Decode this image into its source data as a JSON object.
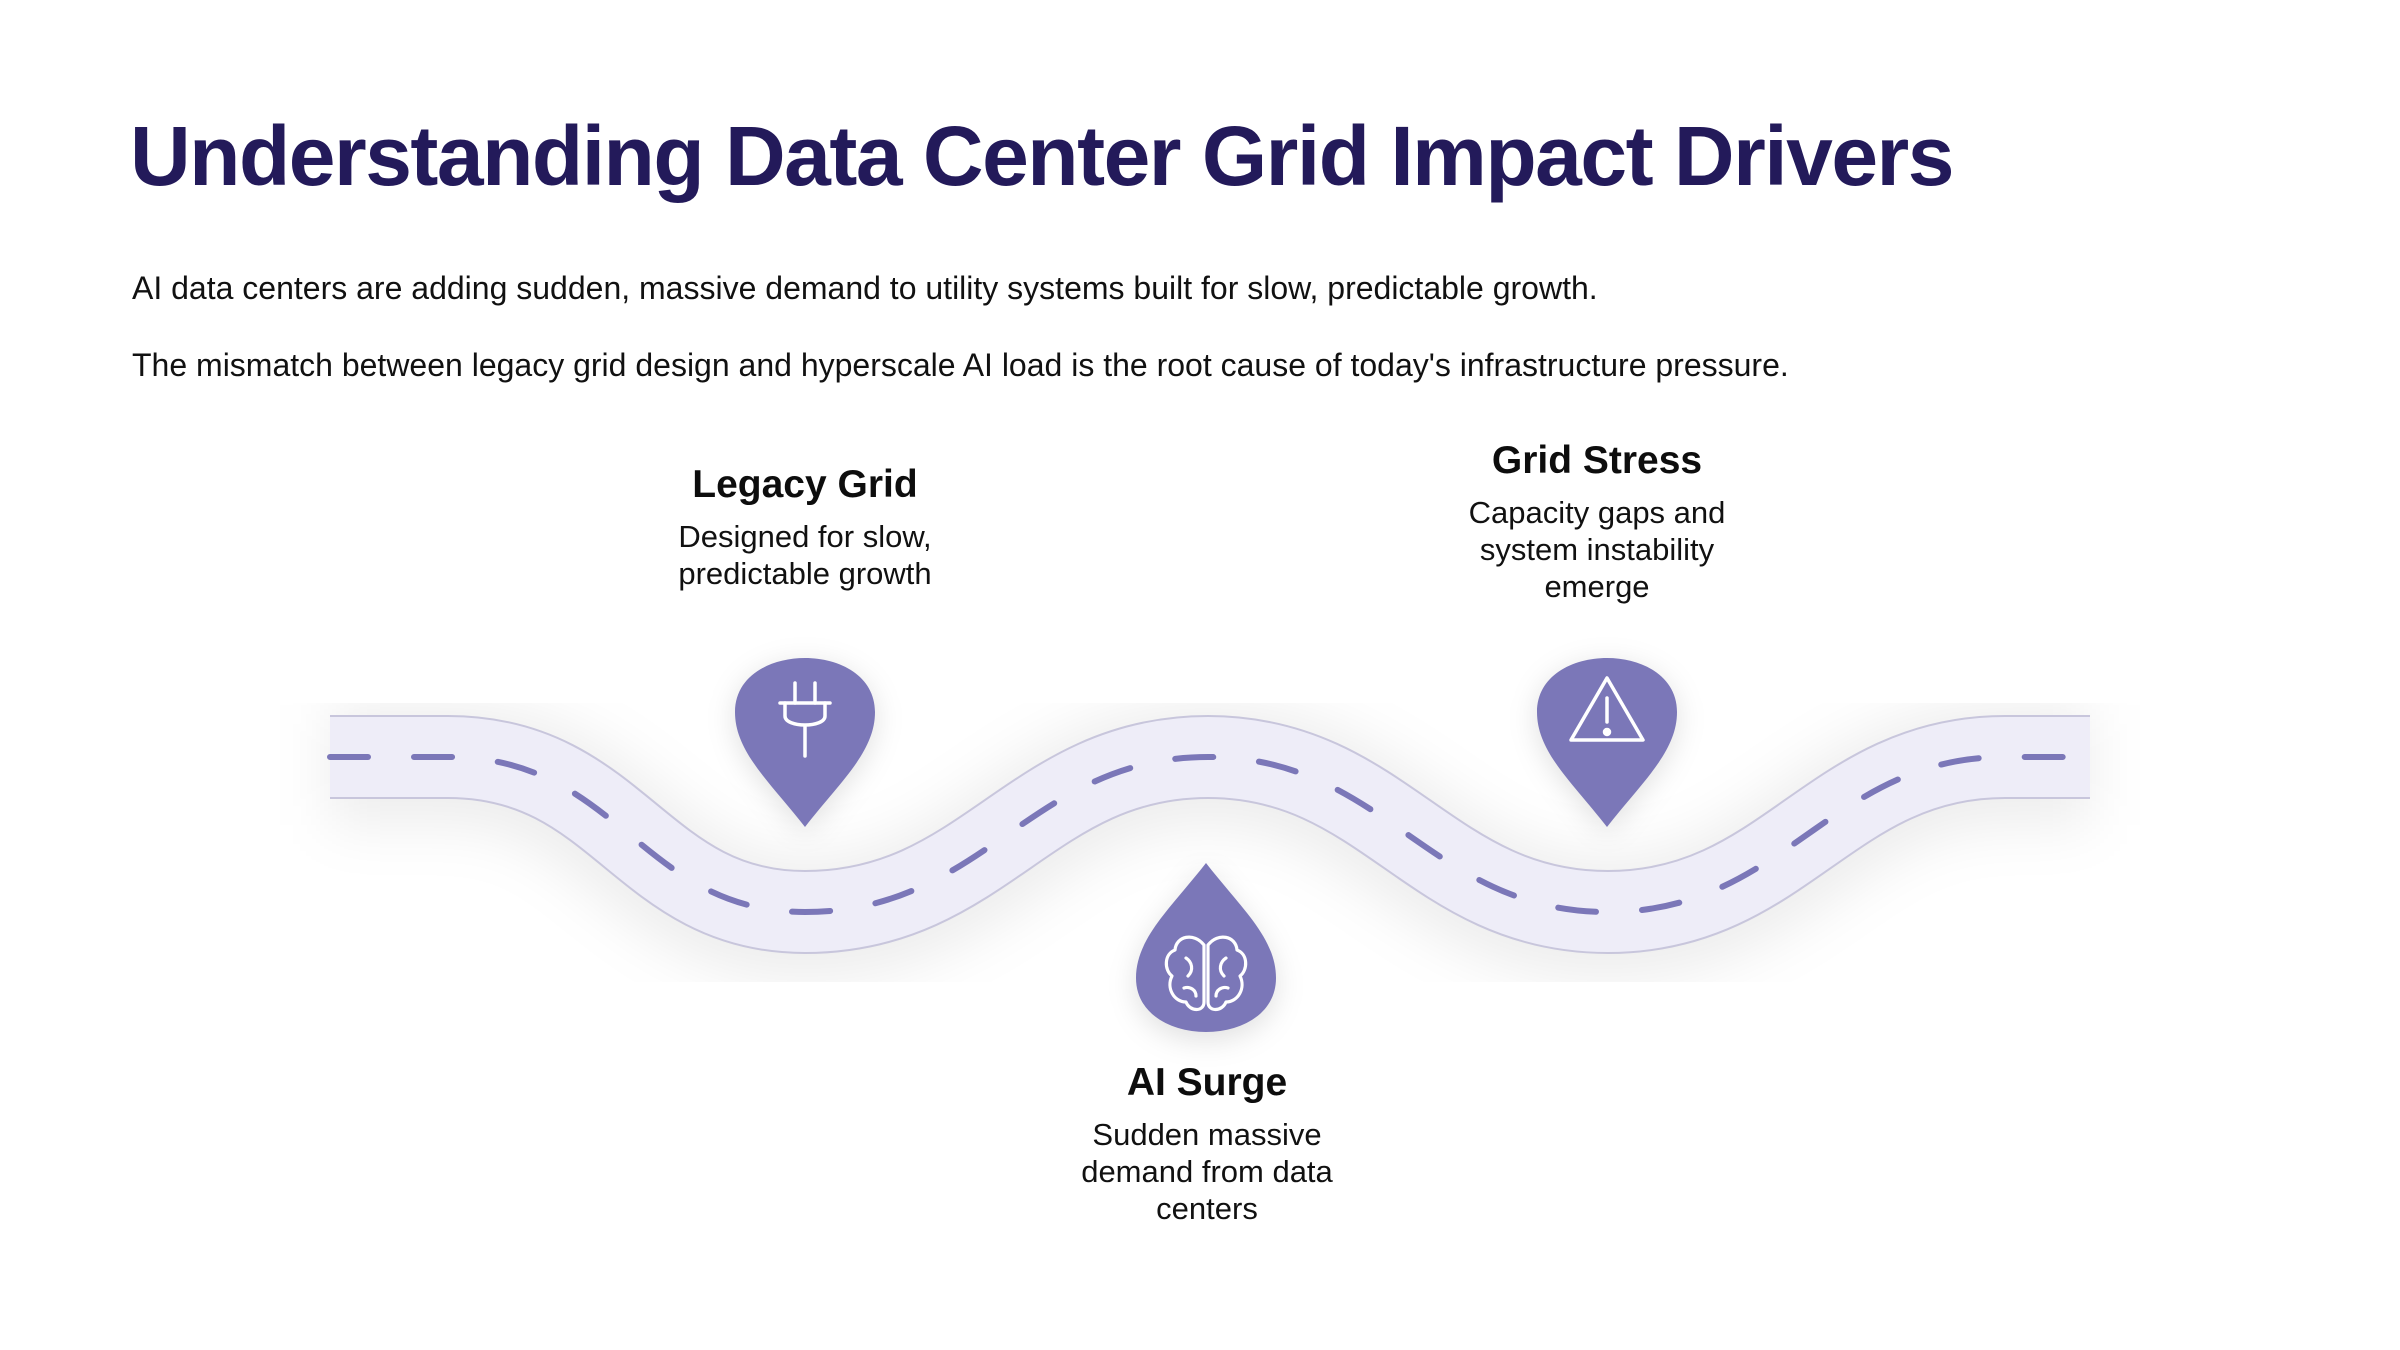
{
  "slide": {
    "title": "Understanding Data Center Grid Impact Drivers",
    "paragraphs": [
      "AI data centers are adding sudden, massive demand to utility systems built for slow, predictable growth.",
      "The mismatch between legacy grid design and hyperscale AI load is the root cause of today's infrastructure pressure."
    ]
  },
  "colors": {
    "title": "#231a5a",
    "road_fill": "#eeedf8",
    "road_edge": "#c8c6dc",
    "dash": "#7b77b8",
    "pin": "#7b77b8"
  },
  "milestones": [
    {
      "heading": "Legacy Grid",
      "description_lines": [
        "Designed for slow,",
        "predictable growth"
      ],
      "icon": "plug-icon"
    },
    {
      "heading": "AI Surge",
      "description_lines": [
        "Sudden massive",
        "demand from data",
        "centers"
      ],
      "icon": "brain-icon"
    },
    {
      "heading": "Grid Stress",
      "description_lines": [
        "Capacity gaps and",
        "system instability",
        "emerge"
      ],
      "icon": "warning-icon"
    }
  ]
}
